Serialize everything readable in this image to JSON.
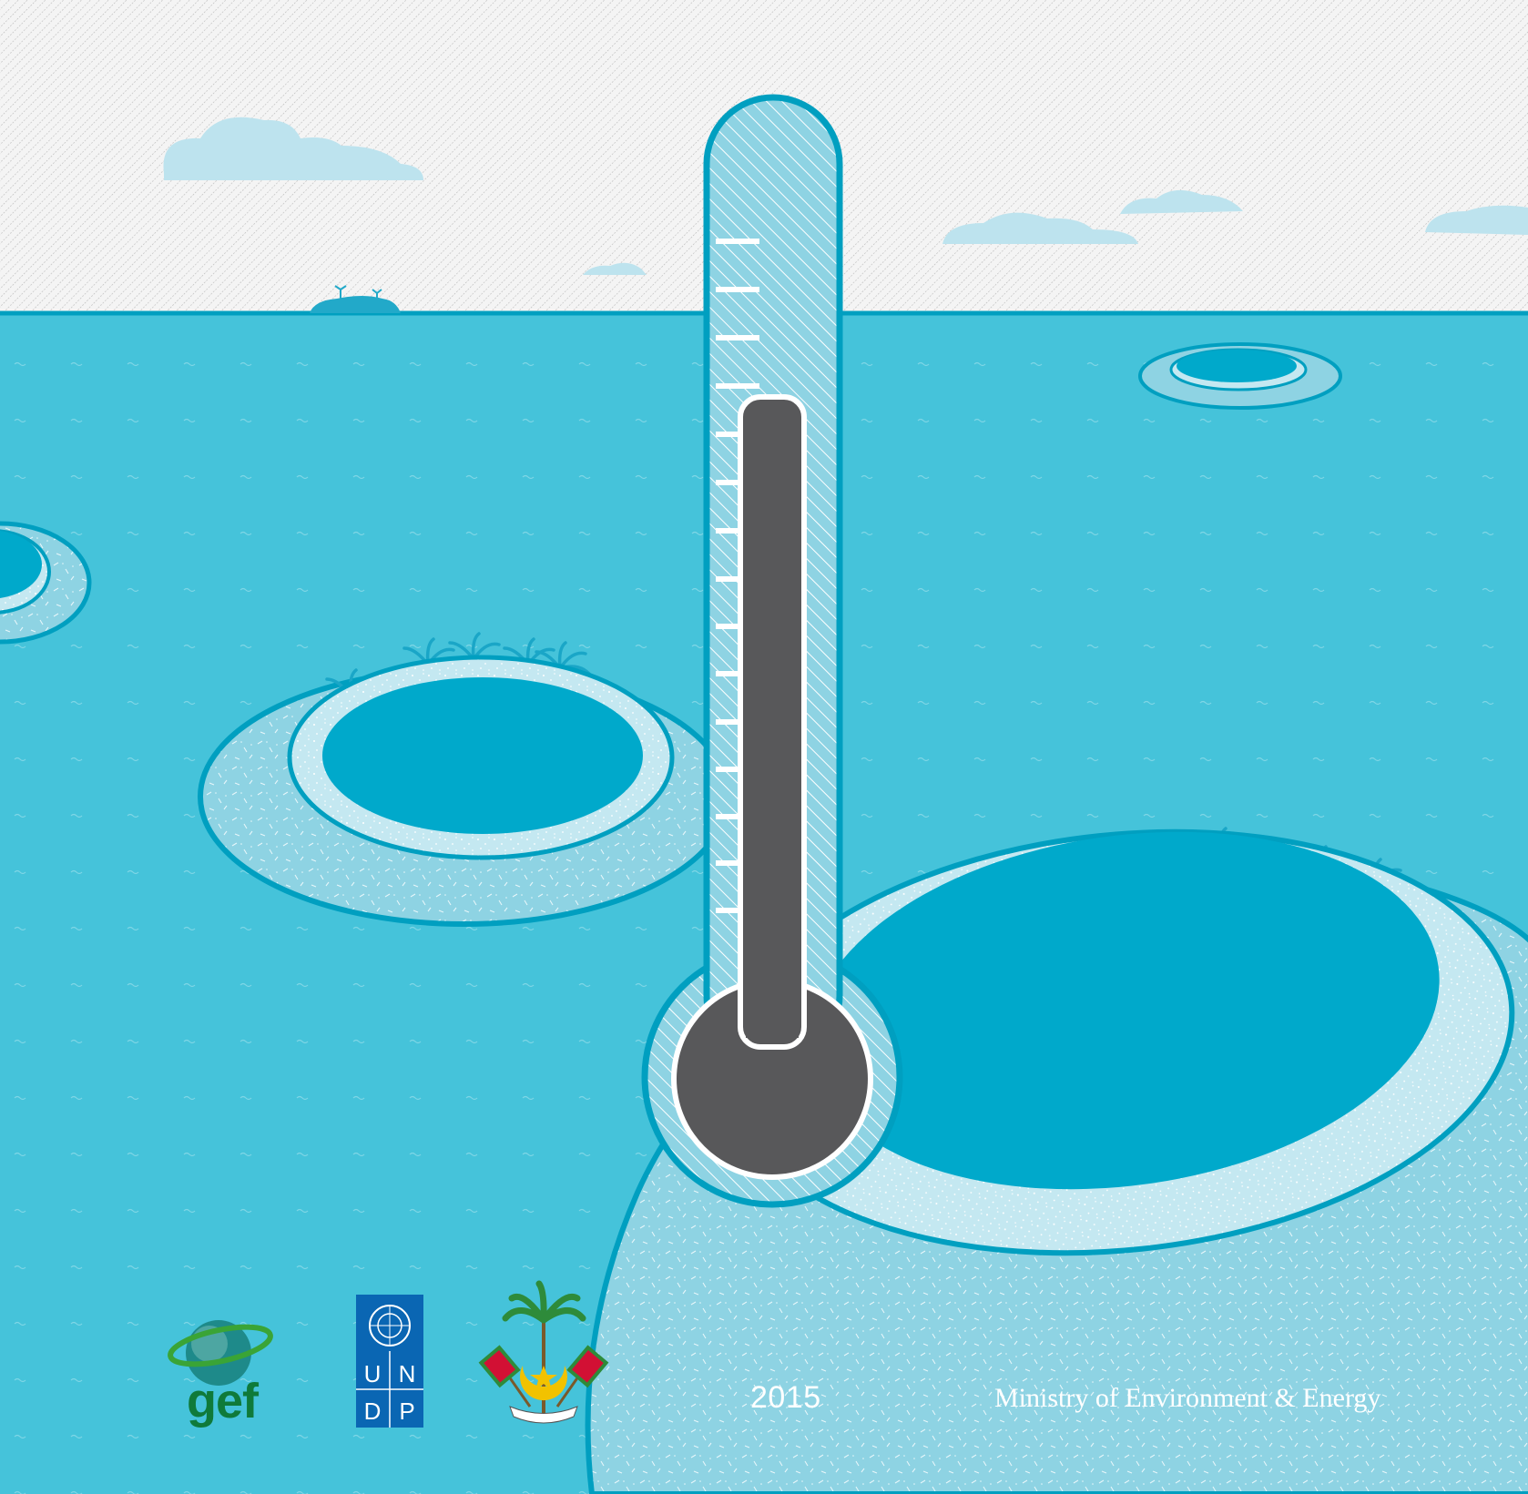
{
  "cover": {
    "year": "2015",
    "publisher": "Ministry of Environment & Energy"
  },
  "logos": {
    "gef": {
      "text": "gef",
      "icon": "gef-globe-logo"
    },
    "undp": {
      "letters": [
        "U",
        "N",
        "D",
        "P"
      ],
      "icon": "un-emblem"
    },
    "maldives": {
      "icon": "maldives-state-emblem"
    }
  },
  "illustration": {
    "icons": [
      "thermometer",
      "cloud",
      "atoll",
      "palm-tree",
      "distant-island"
    ],
    "thermometer_level": 0.62,
    "colors": {
      "sky": "#f4f4f4",
      "sky_hatch": "#b9b9b9",
      "ocean": "#45c3da",
      "ocean_outline": "#009fc0",
      "lagoon": "#00a9cb",
      "reef": "#8ed3e3",
      "sand": "#c4e8f1",
      "cloud": "#bde3ee",
      "mercury": "#58585a",
      "undp_blue": "#0a66b3",
      "gef_green": "#0f7a3a",
      "text": "#ffffff"
    }
  }
}
